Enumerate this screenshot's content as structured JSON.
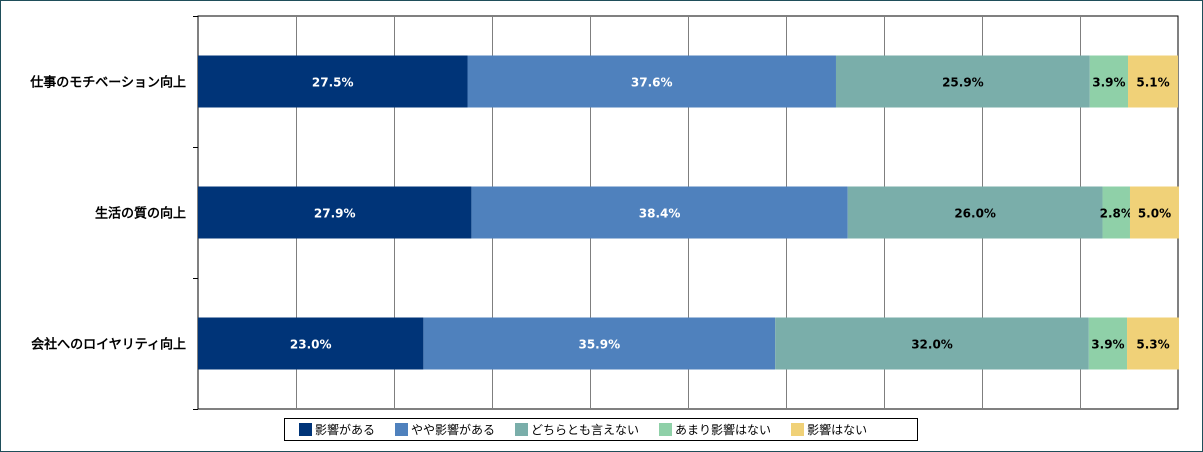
{
  "chart_data": {
    "type": "bar",
    "orientation": "horizontal",
    "stacked": "percent",
    "categories": [
      "仕事のモチベーション向上",
      "生活の質の向上",
      "会社へのロイヤリティ向上"
    ],
    "series": [
      {
        "name": "影響がある",
        "color": "#003478",
        "values": [
          27.5,
          27.9,
          23.0
        ],
        "labels": [
          "27.5%",
          "27.9%",
          "23.0%"
        ],
        "label_color": "#ffffff"
      },
      {
        "name": "やや影響がある",
        "color": "#4f81bd",
        "values": [
          37.6,
          38.4,
          35.9
        ],
        "labels": [
          "37.6%",
          "38.4%",
          "35.9%"
        ],
        "label_color": "#ffffff"
      },
      {
        "name": "どちらとも言えない",
        "color": "#7aaeaa",
        "values": [
          25.9,
          26.0,
          32.0
        ],
        "labels": [
          "25.9%",
          "26.0%",
          "32.0%"
        ],
        "label_color": "#000000"
      },
      {
        "name": "あまり影響はない",
        "color": "#8fd0a8",
        "values": [
          3.9,
          2.8,
          3.9
        ],
        "labels": [
          "3.9%",
          "2.8%",
          "3.9%"
        ],
        "label_color": "#000000"
      },
      {
        "name": "影響はない",
        "color": "#f0d178",
        "values": [
          5.1,
          5.0,
          5.3
        ],
        "labels": [
          "5.1%",
          "5.0%",
          "5.3%"
        ],
        "label_color": "#000000"
      }
    ],
    "xlim": [
      0,
      100
    ],
    "grid": true,
    "legend_position": "bottom"
  }
}
